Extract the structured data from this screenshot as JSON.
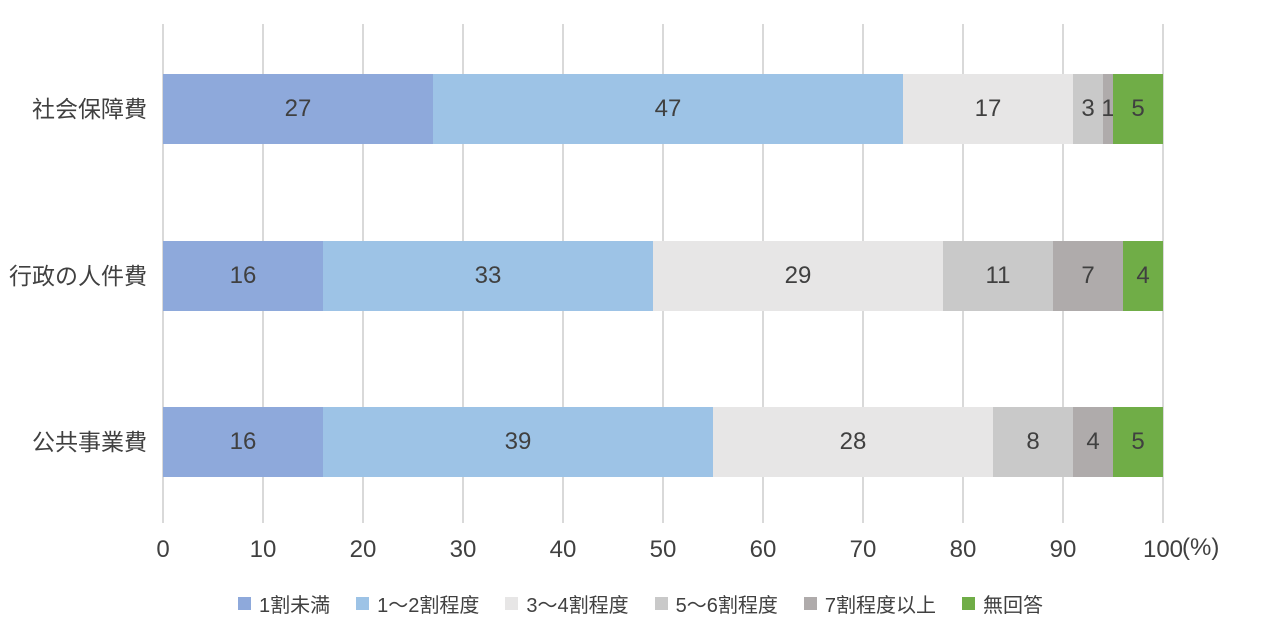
{
  "chart_data": {
    "type": "bar",
    "orientation": "horizontal",
    "stacked": true,
    "title": "",
    "categories": [
      "社会保障費",
      "行政の人件費",
      "公共事業費"
    ],
    "series": [
      {
        "name": "1割未満",
        "color": "#8ea9db",
        "values": [
          27,
          16,
          16
        ]
      },
      {
        "name": "1～2割程度",
        "color": "#9dc3e6",
        "values": [
          47,
          33,
          39
        ]
      },
      {
        "name": "3～4割程度",
        "color": "#e7e6e6",
        "values": [
          17,
          29,
          28
        ]
      },
      {
        "name": "5～6割程度",
        "color": "#c9c9c9",
        "values": [
          3,
          11,
          8
        ]
      },
      {
        "name": "7割程度以上",
        "color": "#afabab",
        "values": [
          1,
          7,
          4
        ]
      },
      {
        "name": "無回答",
        "color": "#70ad47",
        "values": [
          5,
          4,
          5
        ]
      }
    ],
    "x_axis": {
      "min": 0,
      "max": 100,
      "tick_interval": 10,
      "ticks": [
        0,
        10,
        20,
        30,
        40,
        50,
        60,
        70,
        80,
        90,
        100
      ],
      "unit_label": "(%)"
    },
    "grid": true,
    "gridline_color": "#d9d9d9",
    "label_color": "#404040",
    "legend_position": "bottom"
  }
}
